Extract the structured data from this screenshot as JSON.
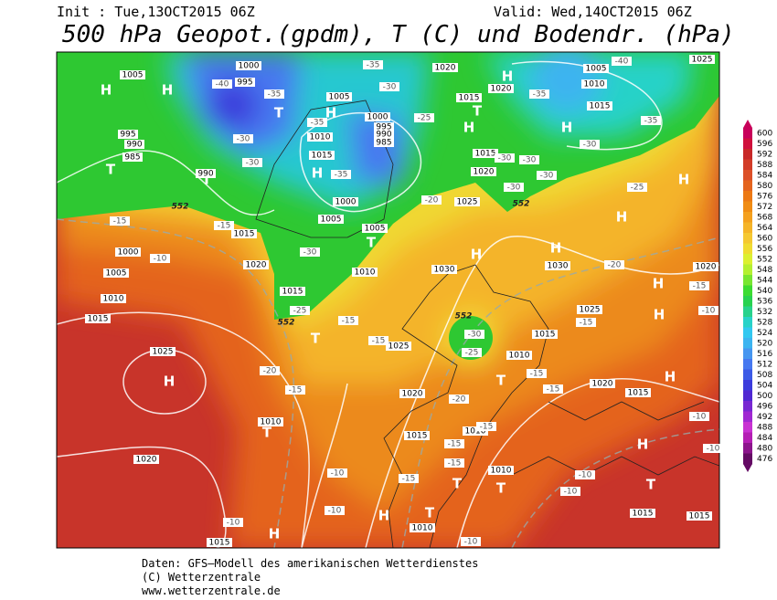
{
  "header": {
    "init": "Init : Tue,13OCT2015 06Z",
    "valid": "Valid: Wed,14OCT2015 06Z",
    "title": "500 hPa Geopot.(gpdm), T (C) und Bodendr. (hPa)"
  },
  "footer": {
    "source": "Daten: GFS–Modell des amerikanischen Wetterdienstes",
    "copyright": "(C) Wetterzentrale",
    "url": "www.wetterzentrale.de"
  },
  "colorbar": {
    "levels": [
      600,
      596,
      592,
      588,
      584,
      580,
      576,
      572,
      568,
      564,
      560,
      556,
      552,
      548,
      544,
      540,
      536,
      532,
      528,
      524,
      520,
      516,
      512,
      508,
      504,
      500,
      496,
      492,
      488,
      484,
      480,
      476
    ],
    "colors": [
      "#c8005a",
      "#d0103c",
      "#c82828",
      "#d23c28",
      "#dc5028",
      "#e4641e",
      "#ec7814",
      "#f08c14",
      "#f4a01e",
      "#f5b428",
      "#f5c832",
      "#f0dc32",
      "#dcf032",
      "#b4f032",
      "#78e632",
      "#3cdc32",
      "#28d250",
      "#28d28c",
      "#28d2c8",
      "#32c8f0",
      "#3cb4f0",
      "#4696f0",
      "#4678f0",
      "#3c5ae6",
      "#3c3cdc",
      "#5028d2",
      "#7828d2",
      "#a028d2",
      "#c832d2",
      "#b41eb4",
      "#8c148c",
      "#640a64"
    ]
  },
  "map": {
    "highs_lows": [
      "H",
      "H",
      "T",
      "T",
      "H",
      "H",
      "T",
      "H",
      "T",
      "H",
      "H",
      "H",
      "H",
      "H",
      "H",
      "H",
      "H",
      "T",
      "H",
      "T",
      "T",
      "H",
      "H",
      "T",
      "T",
      "T",
      "H",
      "H",
      "T",
      "T"
    ],
    "isobar_labels": [
      "1005",
      "1000",
      "995",
      "1005",
      "1000",
      "995",
      "990",
      "985",
      "1010",
      "1015",
      "1000",
      "1005",
      "1005",
      "1010",
      "1015",
      "1020",
      "1015",
      "995",
      "990",
      "985",
      "1000",
      "1005",
      "1010",
      "1015",
      "1025",
      "1020",
      "1010",
      "990",
      "1020",
      "1015",
      "1020",
      "1005",
      "1010",
      "1015",
      "1015",
      "1020",
      "1025",
      "1030",
      "1030",
      "1025",
      "1025",
      "1020",
      "1010",
      "1015",
      "1020",
      "1015",
      "1015",
      "1010",
      "1010",
      "1010",
      "1015",
      "1015",
      "1015",
      "1025",
      "1020"
    ],
    "temperature_labels": [
      "-40",
      "-35",
      "-30",
      "-35",
      "-30",
      "-35",
      "-25",
      "-30",
      "-35",
      "-30",
      "-30",
      "-30",
      "-35",
      "-35",
      "-30",
      "-25",
      "-30",
      "-40",
      "-20",
      "-15",
      "-15",
      "-10",
      "-30",
      "-25",
      "-15",
      "-15",
      "-20",
      "-15",
      "-20",
      "-15",
      "-15",
      "-15",
      "-15",
      "-20",
      "-15",
      "-10",
      "-10",
      "-10",
      "-10",
      "-10",
      "-15",
      "-15",
      "-15",
      "-10",
      "-10",
      "-10",
      "-10",
      "-30",
      "-25"
    ],
    "geopotential_labels": [
      "552",
      "552",
      "552",
      "552"
    ]
  }
}
